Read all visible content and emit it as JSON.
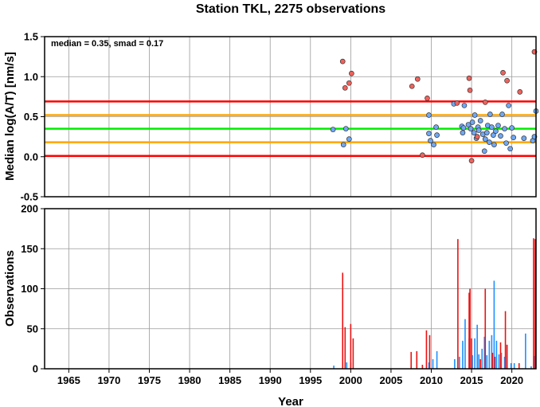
{
  "chart_data": [
    {
      "type": "scatter",
      "title": "Station TKL, 2275 observations",
      "ylabel": "Median log(A/T) [nm/s]",
      "xlim": [
        1962.0,
        2023.0
      ],
      "ylim": [
        -0.5,
        1.5
      ],
      "yticks": [
        -0.5,
        0.0,
        0.5,
        1.0,
        1.5
      ],
      "ytick_labels": [
        "-0.5",
        "0.0",
        "0.5",
        "1.0",
        "1.5"
      ],
      "grid": true,
      "annotation": "median = 0.35, smad = 0.17",
      "hlines": [
        {
          "y": 0.69,
          "color": "#ff0000"
        },
        {
          "y": 0.52,
          "color": "#ffa500"
        },
        {
          "y": 0.35,
          "color": "#00ee00"
        },
        {
          "y": 0.18,
          "color": "#ffa500"
        },
        {
          "y": 0.01,
          "color": "#ff0000"
        }
      ],
      "series": [
        {
          "color": "#6fa8f5",
          "points": [
            [
              1997.8,
              0.34
            ],
            [
              1999.1,
              0.15
            ],
            [
              1999.4,
              0.35
            ],
            [
              1999.8,
              0.22
            ],
            [
              2009.7,
              0.52
            ],
            [
              2009.7,
              0.29
            ],
            [
              2009.9,
              0.2
            ],
            [
              2010.3,
              0.15
            ],
            [
              2010.6,
              0.37
            ],
            [
              2010.7,
              0.27
            ],
            [
              2012.8,
              0.66
            ],
            [
              2013.8,
              0.38
            ],
            [
              2013.9,
              0.3
            ],
            [
              2014.0,
              0.36
            ],
            [
              2014.1,
              0.64
            ],
            [
              2014.6,
              0.4
            ],
            [
              2014.9,
              0.35
            ],
            [
              2015.1,
              0.43
            ],
            [
              2015.3,
              0.3
            ],
            [
              2015.4,
              0.52
            ],
            [
              2015.6,
              0.23
            ],
            [
              2015.8,
              0.37
            ],
            [
              2015.9,
              0.33
            ],
            [
              2016.1,
              0.45
            ],
            [
              2016.4,
              0.28
            ],
            [
              2016.6,
              0.07
            ],
            [
              2016.7,
              0.22
            ],
            [
              2016.9,
              0.3
            ],
            [
              2017.0,
              0.39
            ],
            [
              2017.2,
              0.18
            ],
            [
              2017.3,
              0.53
            ],
            [
              2017.5,
              0.37
            ],
            [
              2017.7,
              0.27
            ],
            [
              2017.8,
              0.15
            ],
            [
              2018.0,
              0.32
            ],
            [
              2018.3,
              0.39
            ],
            [
              2018.6,
              0.26
            ],
            [
              2018.8,
              0.53
            ],
            [
              2019.1,
              0.35
            ],
            [
              2019.3,
              0.17
            ],
            [
              2019.6,
              0.64
            ],
            [
              2019.8,
              0.1
            ],
            [
              2020.0,
              0.36
            ],
            [
              2020.2,
              0.24
            ],
            [
              2021.5,
              0.23
            ],
            [
              2022.6,
              0.2
            ],
            [
              2022.8,
              0.25
            ],
            [
              2023.0,
              0.57
            ]
          ]
        },
        {
          "color": "#f0625c",
          "points": [
            [
              1999.0,
              1.19
            ],
            [
              1999.3,
              0.86
            ],
            [
              1999.8,
              0.92
            ],
            [
              2000.1,
              1.04
            ],
            [
              2007.6,
              0.88
            ],
            [
              2008.3,
              0.97
            ],
            [
              2008.9,
              0.02
            ],
            [
              2009.5,
              0.73
            ],
            [
              2013.2,
              0.67
            ],
            [
              2014.7,
              0.98
            ],
            [
              2014.8,
              0.83
            ],
            [
              2015.0,
              -0.05
            ],
            [
              2015.7,
              0.25
            ],
            [
              2016.7,
              0.68
            ],
            [
              2018.9,
              1.05
            ],
            [
              2019.4,
              0.95
            ],
            [
              2021.0,
              0.81
            ],
            [
              2022.8,
              1.31
            ]
          ]
        }
      ]
    },
    {
      "type": "bar",
      "xlabel": "Year",
      "ylabel": "Observations",
      "xlim": [
        1962.0,
        2023.0
      ],
      "ylim": [
        0,
        200
      ],
      "yticks": [
        0,
        50,
        100,
        150,
        200
      ],
      "xticks": [
        1965,
        1970,
        1975,
        1980,
        1985,
        1990,
        1995,
        2000,
        2005,
        2010,
        2015,
        2020
      ],
      "grid": true,
      "series": [
        {
          "color": "#1e90ff",
          "bars": [
            [
              1997.9,
              4
            ],
            [
              1999.5,
              8
            ],
            [
              2000.0,
              8
            ],
            [
              2009.7,
              8
            ],
            [
              2010.2,
              12
            ],
            [
              2010.7,
              22
            ],
            [
              2012.9,
              12
            ],
            [
              2013.5,
              15
            ],
            [
              2013.9,
              35
            ],
            [
              2014.2,
              62
            ],
            [
              2014.7,
              38
            ],
            [
              2015.1,
              17
            ],
            [
              2015.4,
              38
            ],
            [
              2015.7,
              55
            ],
            [
              2015.9,
              18
            ],
            [
              2016.3,
              25
            ],
            [
              2016.6,
              40
            ],
            [
              2016.9,
              17
            ],
            [
              2017.2,
              35
            ],
            [
              2017.5,
              42
            ],
            [
              2017.8,
              110
            ],
            [
              2018.1,
              35
            ],
            [
              2018.4,
              18
            ],
            [
              2018.7,
              20
            ],
            [
              2019.1,
              15
            ],
            [
              2019.4,
              30
            ],
            [
              2019.9,
              7
            ],
            [
              2020.3,
              7
            ],
            [
              2021.7,
              44
            ],
            [
              2022.4,
              3
            ],
            [
              2022.8,
              16
            ]
          ]
        },
        {
          "color": "#ee1111",
          "bars": [
            [
              1999.0,
              120
            ],
            [
              1999.3,
              52
            ],
            [
              2000.0,
              56
            ],
            [
              2000.3,
              38
            ],
            [
              2007.5,
              21
            ],
            [
              2008.2,
              22
            ],
            [
              2008.9,
              5
            ],
            [
              2009.4,
              48
            ],
            [
              2009.8,
              42
            ],
            [
              2013.3,
              162
            ],
            [
              2014.7,
              95
            ],
            [
              2014.8,
              100
            ],
            [
              2015.0,
              38
            ],
            [
              2016.1,
              12
            ],
            [
              2016.7,
              100
            ],
            [
              2017.6,
              20
            ],
            [
              2017.9,
              15
            ],
            [
              2018.6,
              33
            ],
            [
              2019.2,
              72
            ],
            [
              2019.4,
              30
            ],
            [
              2020.9,
              7
            ],
            [
              2022.7,
              163
            ],
            [
              2022.9,
              162
            ]
          ]
        }
      ]
    }
  ]
}
